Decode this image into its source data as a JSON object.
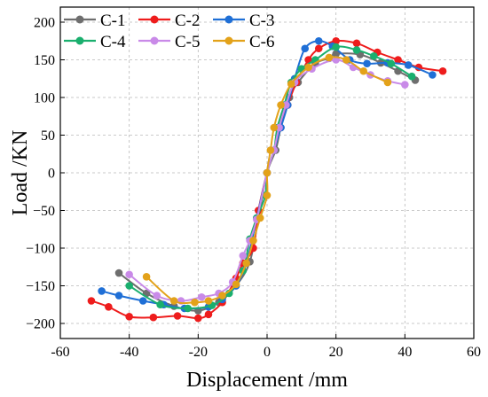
{
  "chart_data": {
    "type": "line",
    "xlabel": "Displacement /mm",
    "ylabel": "Load /KN",
    "xlim": [
      -60,
      60
    ],
    "ylim": [
      -220,
      220
    ],
    "x_ticks": [
      -60,
      -40,
      -20,
      0,
      20,
      40,
      60
    ],
    "y_ticks": [
      -200,
      -150,
      -100,
      -50,
      0,
      50,
      100,
      150,
      200
    ],
    "grid": true,
    "legend_position": "top-left",
    "series": [
      {
        "name": "C-1",
        "color": "#6e6e6e",
        "points": [
          [
            -43,
            -133
          ],
          [
            -35,
            -160
          ],
          [
            -27,
            -177
          ],
          [
            -20,
            -183
          ],
          [
            -14,
            -172
          ],
          [
            -9,
            -150
          ],
          [
            -5,
            -118
          ],
          [
            -2.5,
            -60
          ],
          [
            0,
            0
          ],
          [
            2.5,
            30
          ],
          [
            4,
            60
          ],
          [
            6.5,
            100
          ],
          [
            9,
            120
          ],
          [
            14,
            145
          ],
          [
            18,
            152
          ],
          [
            20,
            158
          ],
          [
            27,
            157
          ],
          [
            33,
            146
          ],
          [
            38,
            135
          ],
          [
            43,
            123
          ]
        ]
      },
      {
        "name": "C-2",
        "color": "#ee1c1c",
        "points": [
          [
            -51,
            -170
          ],
          [
            -46,
            -178
          ],
          [
            -40,
            -191
          ],
          [
            -33,
            -192
          ],
          [
            -26,
            -190
          ],
          [
            -20,
            -193
          ],
          [
            -17,
            -188
          ],
          [
            -13,
            -172
          ],
          [
            -9,
            -140
          ],
          [
            -7,
            -120
          ],
          [
            -4,
            -100
          ],
          [
            -2.5,
            -50
          ],
          [
            0,
            0
          ],
          [
            2,
            30
          ],
          [
            3.5,
            60
          ],
          [
            6,
            90
          ],
          [
            8.5,
            120
          ],
          [
            12,
            150
          ],
          [
            15,
            165
          ],
          [
            20,
            175
          ],
          [
            26,
            172
          ],
          [
            32,
            160
          ],
          [
            38,
            150
          ],
          [
            44,
            140
          ],
          [
            51,
            135
          ]
        ]
      },
      {
        "name": "C-3",
        "color": "#1f6fd6",
        "points": [
          [
            -48,
            -157
          ],
          [
            -43,
            -163
          ],
          [
            -36,
            -170
          ],
          [
            -30,
            -175
          ],
          [
            -24,
            -180
          ],
          [
            -17,
            -178
          ],
          [
            -13,
            -168
          ],
          [
            -9,
            -150
          ],
          [
            -6,
            -120
          ],
          [
            -3,
            -60
          ],
          [
            0,
            0
          ],
          [
            2,
            30
          ],
          [
            4,
            60
          ],
          [
            6,
            90
          ],
          [
            8,
            125
          ],
          [
            11,
            165
          ],
          [
            15,
            175
          ],
          [
            19,
            168
          ],
          [
            24,
            150
          ],
          [
            29,
            145
          ],
          [
            35,
            146
          ],
          [
            41,
            143
          ],
          [
            48,
            130
          ]
        ]
      },
      {
        "name": "C-4",
        "color": "#1aaf6e",
        "points": [
          [
            -40,
            -150
          ],
          [
            -31,
            -175
          ],
          [
            -23,
            -180
          ],
          [
            -16,
            -176
          ],
          [
            -11,
            -160
          ],
          [
            -7,
            -130
          ],
          [
            -5,
            -88
          ],
          [
            -3,
            -60
          ],
          [
            -0.5,
            -30
          ],
          [
            0,
            0
          ],
          [
            2,
            30
          ],
          [
            3,
            60
          ],
          [
            5,
            90
          ],
          [
            7,
            120
          ],
          [
            10,
            138
          ],
          [
            14,
            150
          ],
          [
            20,
            167
          ],
          [
            26,
            163
          ],
          [
            31,
            155
          ],
          [
            36,
            145
          ],
          [
            42,
            128
          ]
        ]
      },
      {
        "name": "C-5",
        "color": "#c98ae8",
        "points": [
          [
            -40,
            -135
          ],
          [
            -32,
            -163
          ],
          [
            -25,
            -170
          ],
          [
            -19,
            -165
          ],
          [
            -14,
            -160
          ],
          [
            -10,
            -145
          ],
          [
            -7,
            -110
          ],
          [
            -5,
            -90
          ],
          [
            -3,
            -62
          ],
          [
            0,
            0
          ],
          [
            2,
            30
          ],
          [
            3.5,
            60
          ],
          [
            5.5,
            90
          ],
          [
            8,
            120
          ],
          [
            13,
            138
          ],
          [
            20,
            150
          ],
          [
            25,
            140
          ],
          [
            30,
            130
          ],
          [
            35,
            122
          ],
          [
            40,
            117
          ]
        ]
      },
      {
        "name": "C-6",
        "color": "#e3a21a",
        "points": [
          [
            -35,
            -138
          ],
          [
            -27,
            -170
          ],
          [
            -21,
            -172
          ],
          [
            -17,
            -170
          ],
          [
            -13,
            -163
          ],
          [
            -9,
            -148
          ],
          [
            -6,
            -120
          ],
          [
            -4,
            -90
          ],
          [
            -2,
            -60
          ],
          [
            0,
            -30
          ],
          [
            0,
            0
          ],
          [
            1,
            30
          ],
          [
            2,
            60
          ],
          [
            4,
            90
          ],
          [
            7,
            118
          ],
          [
            12,
            140
          ],
          [
            18,
            153
          ],
          [
            23,
            150
          ],
          [
            28,
            135
          ],
          [
            35,
            120
          ]
        ]
      }
    ]
  }
}
